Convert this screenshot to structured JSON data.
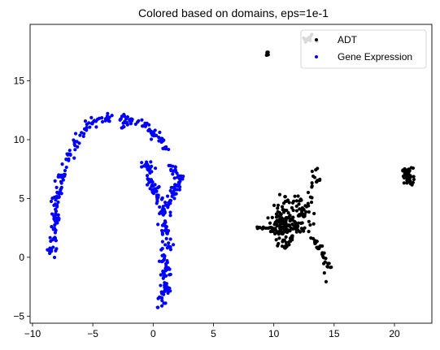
{
  "chart_data": {
    "type": "scatter",
    "title": "Colored based on domains, eps=1e-1",
    "xlabel": "",
    "ylabel": "",
    "xlim": [
      -10.2,
      23.1
    ],
    "ylim": [
      -5.6,
      19.8
    ],
    "x_ticks": [
      -10,
      -5,
      0,
      5,
      10,
      15,
      20
    ],
    "y_ticks": [
      -5,
      0,
      5,
      10,
      15
    ],
    "grid": false,
    "legend_position": "top-right",
    "series": [
      {
        "name": "ADT",
        "color": "#000000",
        "clusters": [
          {
            "x": 9.5,
            "y": 17.3,
            "sx": 0.08,
            "sy": 0.08,
            "n": 6
          },
          {
            "x": 12.8,
            "y": 18.5,
            "sx": 0.35,
            "sy": 0.15,
            "n": 14
          },
          {
            "x": 21.1,
            "y": 6.9,
            "sx": 0.22,
            "sy": 0.35,
            "n": 60
          },
          {
            "x": 10.8,
            "y": 2.6,
            "sx": 0.5,
            "sy": 0.8,
            "n": 90
          },
          {
            "x": 11.5,
            "y": 3.0,
            "sx": 0.9,
            "sy": 0.6,
            "n": 50
          },
          {
            "x": 11.2,
            "y": 4.6,
            "sx": 0.6,
            "sy": 0.5,
            "n": 30
          }
        ],
        "paths": [
          {
            "points": [
              [
                13.3,
                7.6
              ],
              [
                13.6,
                6.9
              ],
              [
                13.0,
                5.5
              ],
              [
                12.8,
                4.2
              ],
              [
                12.2,
                3.4
              ]
            ],
            "n": 30,
            "jitter": 0.18
          },
          {
            "points": [
              [
                11.8,
                2.6
              ],
              [
                13.0,
                2.0
              ],
              [
                13.8,
                0.8
              ],
              [
                14.3,
                -0.3
              ],
              [
                14.5,
                -1.3
              ],
              [
                14.3,
                -2.0
              ]
            ],
            "n": 45,
            "jitter": 0.16
          },
          {
            "points": [
              [
                8.6,
                2.5
              ],
              [
                9.6,
                2.5
              ],
              [
                10.2,
                2.4
              ]
            ],
            "n": 14,
            "jitter": 0.06
          },
          {
            "points": [
              [
                11.0,
                0.8
              ],
              [
                11.2,
                1.5
              ]
            ],
            "n": 8,
            "jitter": 0.1
          }
        ]
      },
      {
        "name": "Gene Expression",
        "color": "#0000ff",
        "clusters": [],
        "paths": [
          {
            "points": [
              [
                -8.4,
                0.2
              ],
              [
                -8.2,
                2.0
              ],
              [
                -8.1,
                4.0
              ],
              [
                -7.8,
                6.0
              ],
              [
                -7.3,
                7.8
              ],
              [
                -6.5,
                9.6
              ],
              [
                -5.8,
                10.8
              ],
              [
                -5.0,
                11.5
              ],
              [
                -4.0,
                11.8
              ],
              [
                -2.7,
                12.0
              ],
              [
                -1.5,
                11.6
              ],
              [
                -0.6,
                11.1
              ],
              [
                0.1,
                10.5
              ],
              [
                0.7,
                9.8
              ],
              [
                1.2,
                9.2
              ]
            ],
            "n": 200,
            "jitter": 0.18
          },
          {
            "points": [
              [
                -0.7,
                8.2
              ],
              [
                -0.2,
                7.3
              ],
              [
                0.0,
                6.2
              ],
              [
                0.3,
                5.2
              ],
              [
                0.8,
                4.2
              ],
              [
                1.0,
                3.0
              ],
              [
                1.1,
                1.8
              ],
              [
                1.0,
                0.5
              ],
              [
                0.9,
                -0.8
              ],
              [
                1.0,
                -1.8
              ],
              [
                1.0,
                -2.8
              ],
              [
                0.7,
                -3.5
              ],
              [
                0.5,
                -4.4
              ]
            ],
            "n": 160,
            "jitter": 0.2
          },
          {
            "points": [
              [
                1.3,
                8.0
              ],
              [
                1.8,
                7.3
              ],
              [
                2.2,
                6.7
              ],
              [
                2.0,
                5.9
              ],
              [
                1.6,
                5.3
              ],
              [
                1.2,
                4.6
              ],
              [
                0.9,
                3.8
              ]
            ],
            "n": 60,
            "jitter": 0.18
          },
          {
            "points": [
              [
                -2.0,
                11.5
              ],
              [
                -2.5,
                10.9
              ]
            ],
            "n": 8,
            "jitter": 0.1
          }
        ]
      }
    ]
  }
}
